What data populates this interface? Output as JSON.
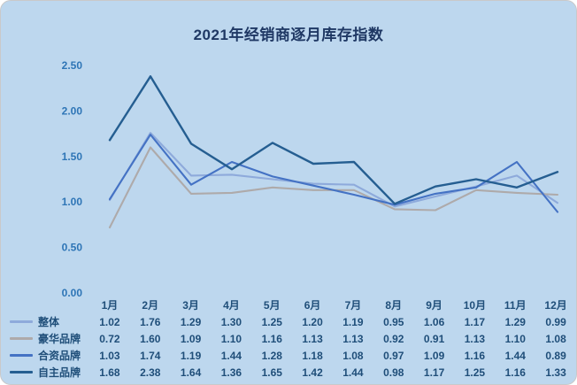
{
  "title": "2021年经销商逐月库存指数",
  "colors": {
    "background": "#BDD7EE",
    "title_text": "#1F3864",
    "axis_text": "#2E75B6",
    "table_text": "#1F4E79"
  },
  "chart_data": {
    "type": "line",
    "title": "2021年经销商逐月库存指数",
    "categories": [
      "1月",
      "2月",
      "3月",
      "4月",
      "5月",
      "6月",
      "7月",
      "8月",
      "9月",
      "10月",
      "11月",
      "12月"
    ],
    "series": [
      {
        "name": "整体",
        "color": "#8EAADB",
        "values": [
          1.02,
          1.76,
          1.29,
          1.3,
          1.25,
          1.2,
          1.19,
          0.95,
          1.06,
          1.17,
          1.29,
          0.99
        ]
      },
      {
        "name": "豪华品牌",
        "color": "#AEAAAA",
        "values": [
          0.72,
          1.6,
          1.09,
          1.1,
          1.16,
          1.13,
          1.13,
          0.92,
          0.91,
          1.13,
          1.1,
          1.08
        ]
      },
      {
        "name": "合资品牌",
        "color": "#4472C4",
        "values": [
          1.03,
          1.74,
          1.19,
          1.44,
          1.28,
          1.18,
          1.08,
          0.97,
          1.09,
          1.16,
          1.44,
          0.89
        ]
      },
      {
        "name": "自主品牌",
        "color": "#255E91",
        "values": [
          1.68,
          2.38,
          1.64,
          1.36,
          1.65,
          1.42,
          1.44,
          0.98,
          1.17,
          1.25,
          1.16,
          1.33
        ]
      }
    ],
    "ylim": [
      0,
      2.5
    ],
    "yticks": [
      0,
      0.5,
      1.0,
      1.5,
      2.0,
      2.5
    ],
    "ytick_labels": [
      "0.00",
      "0.50",
      "1.00",
      "1.50",
      "2.00",
      "2.50"
    ],
    "grid": false,
    "markers": false,
    "legend_position": "table-left"
  }
}
